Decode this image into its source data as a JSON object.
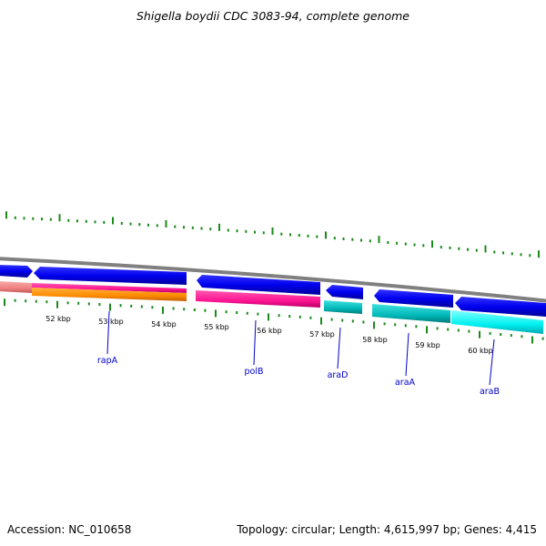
{
  "title": "Shigella boydii CDC 3083-94, complete genome",
  "footer": {
    "accession": "Accession: NC_010658",
    "topology": "Topology: circular; Length: 4,615,997 bp; Genes: 4,415"
  },
  "scale_labels": [
    "52 kbp",
    "53 kbp",
    "54 kbp",
    "55 kbp",
    "56 kbp",
    "57 kbp",
    "58 kbp",
    "59 kbp",
    "60 kbp"
  ],
  "genes": [
    {
      "name": "rapA",
      "strand": "reverse",
      "feature_color": "#ff1493"
    },
    {
      "name": "polB",
      "strand": "reverse",
      "feature_color": "#ff1493"
    },
    {
      "name": "araD",
      "strand": "reverse",
      "feature_color": "#00cccc"
    },
    {
      "name": "araA",
      "strand": "reverse",
      "feature_color": "#00cccc"
    },
    {
      "name": "araB",
      "strand": "reverse",
      "feature_color": "#00ffff"
    }
  ],
  "colors": {
    "cds_strand": "#0000ee",
    "backbone": "#808080",
    "tick": "#1a8a1a",
    "label_leader": "#0000cc",
    "orange_feature": "#ff8c00",
    "salmon_feature": "#f08080"
  }
}
